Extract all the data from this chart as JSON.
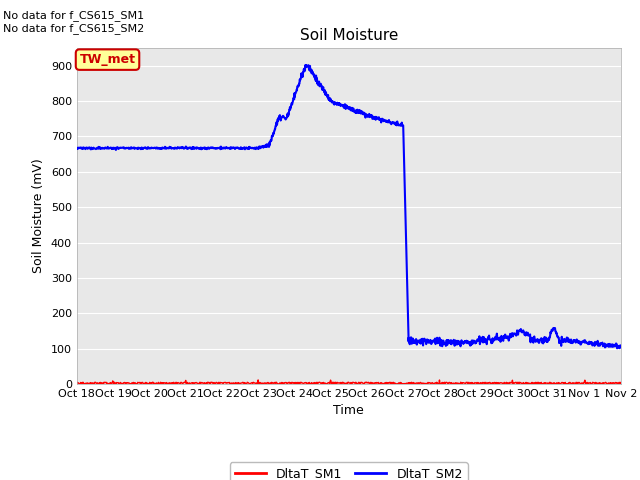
{
  "title": "Soil Moisture",
  "ylabel": "Soil Moisture (mV)",
  "xlabel": "Time",
  "ylim": [
    0,
    950
  ],
  "yticks": [
    0,
    100,
    200,
    300,
    400,
    500,
    600,
    700,
    800,
    900
  ],
  "text_no_data_1": "No data for f_CS615_SM1",
  "text_no_data_2": "No data for f_CS615_SM2",
  "tw_met_label": "TW_met",
  "legend_sm1": "DltaT_SM1",
  "legend_sm2": "DltaT_SM2",
  "sm1_color": "#ff0000",
  "sm2_color": "#0000ff",
  "fig_bg_color": "#ffffff",
  "plot_bg_color": "#e8e8e8",
  "grid_color": "#ffffff",
  "tw_met_fg": "#cc0000",
  "tw_met_bg": "#ffff99",
  "tw_met_border": "#cc0000",
  "xtick_labels": [
    "Oct 18",
    "Oct 19",
    "Oct 20",
    "Oct 21",
    "Oct 22",
    "Oct 23",
    "Oct 24",
    "Oct 25",
    "Oct 26",
    "Oct 27",
    "Oct 28",
    "Oct 29",
    "Oct 30",
    "Oct 31",
    "Nov 1",
    "Nov 2"
  ],
  "no_data_fontsize": 8,
  "title_fontsize": 11,
  "axis_label_fontsize": 9,
  "tick_fontsize": 8
}
